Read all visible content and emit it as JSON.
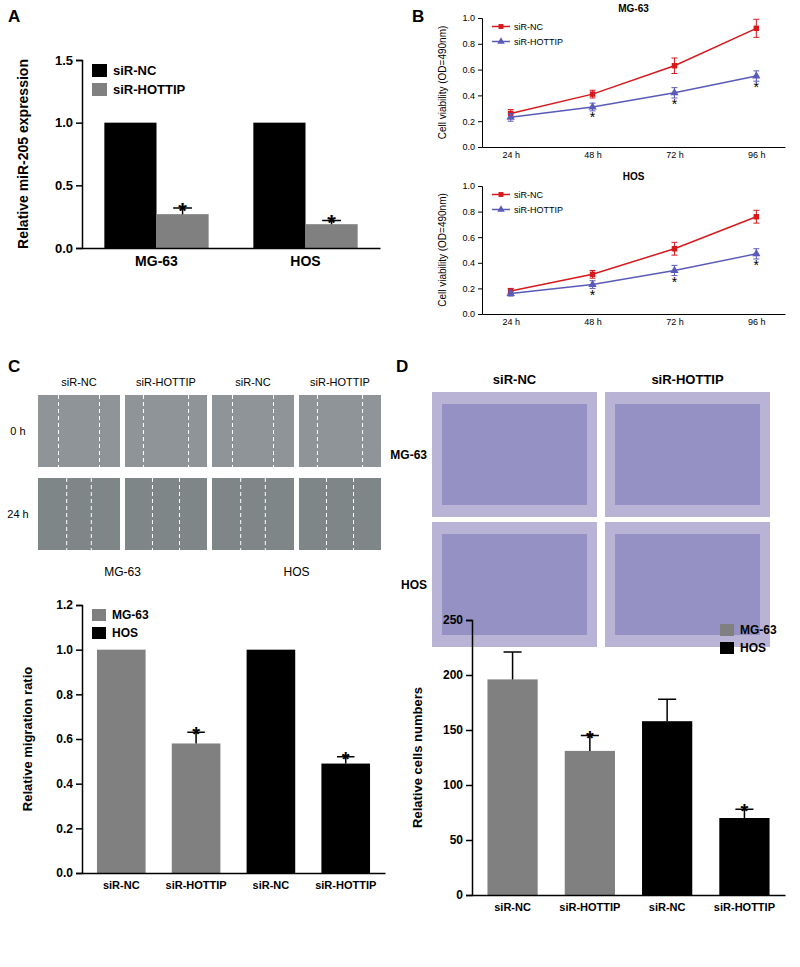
{
  "panel_labels": [
    "A",
    "B",
    "C",
    "D"
  ],
  "micrographs": {
    "C": {
      "columns": [
        "siR-NC",
        "siR-HOTTIP",
        "siR-NC",
        "siR-HOTTIP"
      ],
      "rows": [
        "0 h",
        "24 h"
      ],
      "groups": [
        "MG-63",
        "HOS"
      ]
    },
    "D": {
      "columns": [
        "siR-NC",
        "siR-HOTTIP"
      ],
      "rows": [
        "MG-63",
        "HOS"
      ]
    }
  },
  "chart_data": [
    {
      "type": "bar",
      "y_label": "Relative miR-205 expression",
      "categories": [
        "MG-63",
        "HOS"
      ],
      "series": [
        {
          "name": "siR-NC",
          "color": "#000000",
          "values": [
            1,
            1
          ]
        },
        {
          "name": "siR-HOTTIP",
          "color": "#808080",
          "values": [
            0.27,
            0.19
          ],
          "errors": [
            0.05,
            0.03
          ],
          "annotations": [
            "*",
            "*"
          ]
        }
      ],
      "ylim": [
        0,
        1.5
      ],
      "yticks": [
        {
          "value": 0,
          "label": "0.0"
        },
        {
          "value": 0.5,
          "label": "0.5"
        },
        {
          "value": 1,
          "label": "1.0"
        },
        {
          "value": 1.5,
          "label": "1.5"
        }
      ],
      "grid": false,
      "legend": "top-left"
    },
    {
      "type": "line",
      "title": "MG-63",
      "y_label": "Cell viability (OD=490nm)",
      "categories": [
        "24 h",
        "48 h",
        "72 h",
        "96 h"
      ],
      "series": [
        {
          "name": "siR-NC",
          "color": "#d7191c",
          "marker": "square",
          "line_style": "solid",
          "values": [
            0.26,
            0.41,
            0.63,
            0.92
          ],
          "errors": [
            0.03,
            0.03,
            0.06,
            0.07
          ]
        },
        {
          "name": "siR-HOTTIP",
          "color": "#5a5ab8",
          "marker": "triangle",
          "line_style": "solid",
          "values": [
            0.23,
            0.31,
            0.42,
            0.55
          ],
          "errors": [
            0.03,
            0.03,
            0.04,
            0.04
          ],
          "annotations": [
            null,
            "*",
            "*",
            "*"
          ]
        }
      ],
      "ylim": [
        0,
        1
      ],
      "yticks": [
        {
          "value": 0,
          "label": "0.0"
        },
        {
          "value": 0.2,
          "label": "0.2"
        },
        {
          "value": 0.4,
          "label": "0.4"
        },
        {
          "value": 0.6,
          "label": "0.6"
        },
        {
          "value": 0.8,
          "label": "0.8"
        },
        {
          "value": 1,
          "label": "1.0"
        }
      ],
      "grid": false,
      "legend": "top-left"
    },
    {
      "type": "line",
      "title": "HOS",
      "y_label": "Cell viability (OD=490nm)",
      "categories": [
        "24 h",
        "48 h",
        "72 h",
        "96 h"
      ],
      "series": [
        {
          "name": "siR-NC",
          "color": "#d7191c",
          "marker": "square",
          "line_style": "solid",
          "values": [
            0.18,
            0.31,
            0.51,
            0.76
          ],
          "errors": [
            0.02,
            0.03,
            0.05,
            0.05
          ]
        },
        {
          "name": "siR-HOTTIP",
          "color": "#5a5ab8",
          "marker": "triangle",
          "line_style": "solid",
          "values": [
            0.16,
            0.23,
            0.34,
            0.47
          ],
          "errors": [
            0.02,
            0.03,
            0.04,
            0.04
          ],
          "annotations": [
            null,
            "*",
            "*",
            "*"
          ]
        }
      ],
      "ylim": [
        0,
        1
      ],
      "yticks": [
        {
          "value": 0,
          "label": "0.0"
        },
        {
          "value": 0.2,
          "label": "0.2"
        },
        {
          "value": 0.4,
          "label": "0.4"
        },
        {
          "value": 0.6,
          "label": "0.6"
        },
        {
          "value": 0.8,
          "label": "0.8"
        },
        {
          "value": 1,
          "label": "1.0"
        }
      ],
      "grid": false,
      "legend": "top-left"
    },
    {
      "type": "bar",
      "y_label": "Relative migration ratio",
      "categories": [
        "siR-NC",
        "siR-HOTTIP",
        "siR-NC",
        "siR-HOTTIP"
      ],
      "series": [
        {
          "name": "MG-63",
          "color": "#808080",
          "values": [
            1,
            0.58,
            null,
            null
          ],
          "errors": [
            null,
            0.05,
            null,
            null
          ],
          "annotations": [
            null,
            "*",
            null,
            null
          ]
        },
        {
          "name": "HOS",
          "color": "#000000",
          "values": [
            null,
            null,
            1,
            0.49
          ],
          "errors": [
            null,
            null,
            null,
            0.03
          ],
          "annotations": [
            null,
            null,
            null,
            "*"
          ]
        }
      ],
      "ylim": [
        0,
        1.2
      ],
      "yticks": [
        {
          "value": 0,
          "label": "0.0"
        },
        {
          "value": 0.2,
          "label": "0.2"
        },
        {
          "value": 0.4,
          "label": "0.4"
        },
        {
          "value": 0.6,
          "label": "0.6"
        },
        {
          "value": 0.8,
          "label": "0.8"
        },
        {
          "value": 1,
          "label": "1.0"
        },
        {
          "value": 1.2,
          "label": "1.2"
        }
      ],
      "grid": false,
      "legend": "top-left"
    },
    {
      "type": "bar",
      "y_label": "Relative cells numbers",
      "categories": [
        "siR-NC",
        "siR-HOTTIP",
        "siR-NC",
        "siR-HOTTIP"
      ],
      "series": [
        {
          "name": "MG-63",
          "color": "#808080",
          "values": [
            196,
            131,
            null,
            null
          ],
          "errors": [
            25,
            14,
            null,
            null
          ],
          "annotations": [
            null,
            "*",
            null,
            null
          ]
        },
        {
          "name": "HOS",
          "color": "#000000",
          "values": [
            null,
            null,
            158,
            70
          ],
          "errors": [
            null,
            null,
            20,
            8
          ],
          "annotations": [
            null,
            null,
            null,
            "*"
          ]
        }
      ],
      "ylim": [
        0,
        250
      ],
      "yticks": [
        0,
        50,
        100,
        150,
        200,
        250
      ],
      "grid": false,
      "legend": "top-right"
    }
  ]
}
